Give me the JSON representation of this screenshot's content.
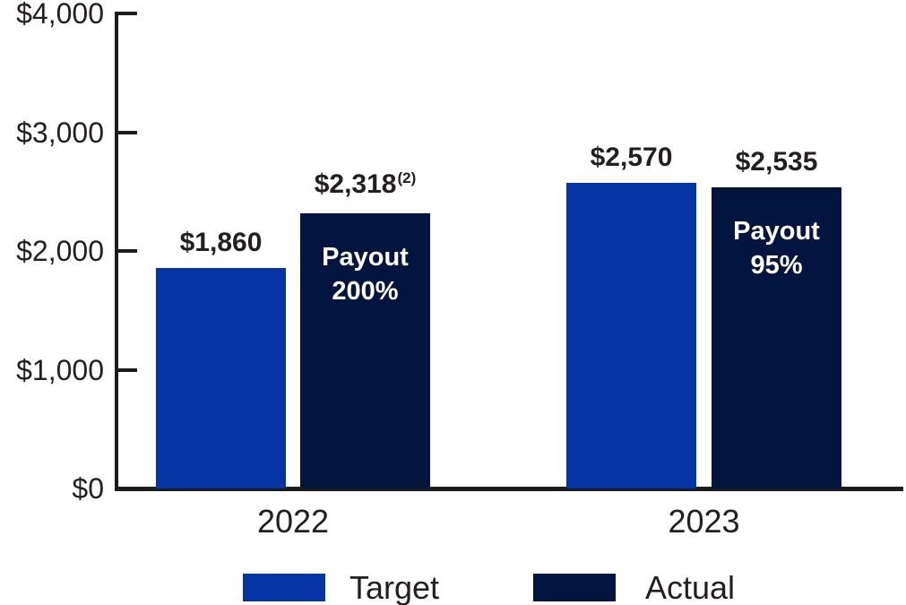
{
  "chart_data": {
    "type": "bar",
    "title": "",
    "categories": [
      "2022",
      "2023"
    ],
    "y_axis": {
      "max": 4000,
      "ticks": [
        {
          "label": "$0",
          "value": 0
        },
        {
          "label": "$1,000",
          "value": 1000
        },
        {
          "label": "$2,000",
          "value": 2000
        },
        {
          "label": "$3,000",
          "value": 3000
        },
        {
          "label": "$4,000",
          "value": 4000
        }
      ]
    },
    "series": [
      {
        "name": "Target",
        "color": "#0535a4"
      },
      {
        "name": "Actual",
        "color": "#02153f"
      }
    ],
    "groups": [
      {
        "category": "2022",
        "bars": [
          {
            "series": "Target",
            "value": 1860,
            "label": "$1,860",
            "superscript": "",
            "inner_lines": []
          },
          {
            "series": "Actual",
            "value": 2318,
            "label": "$2,318",
            "superscript": "(2)",
            "inner_lines": [
              "Payout",
              "200%"
            ]
          }
        ]
      },
      {
        "category": "2023",
        "bars": [
          {
            "series": "Target",
            "value": 2570,
            "label": "$2,570",
            "superscript": "",
            "inner_lines": []
          },
          {
            "series": "Actual",
            "value": 2535,
            "label": "$2,535",
            "superscript": "",
            "inner_lines": [
              "Payout",
              "95%"
            ]
          }
        ]
      }
    ],
    "legend": {
      "position": "bottom",
      "entries": [
        "Target",
        "Actual"
      ]
    },
    "colors": {
      "axis": "#1c1c1c",
      "text": "#231f20",
      "inner_text": "#ffffff"
    }
  }
}
